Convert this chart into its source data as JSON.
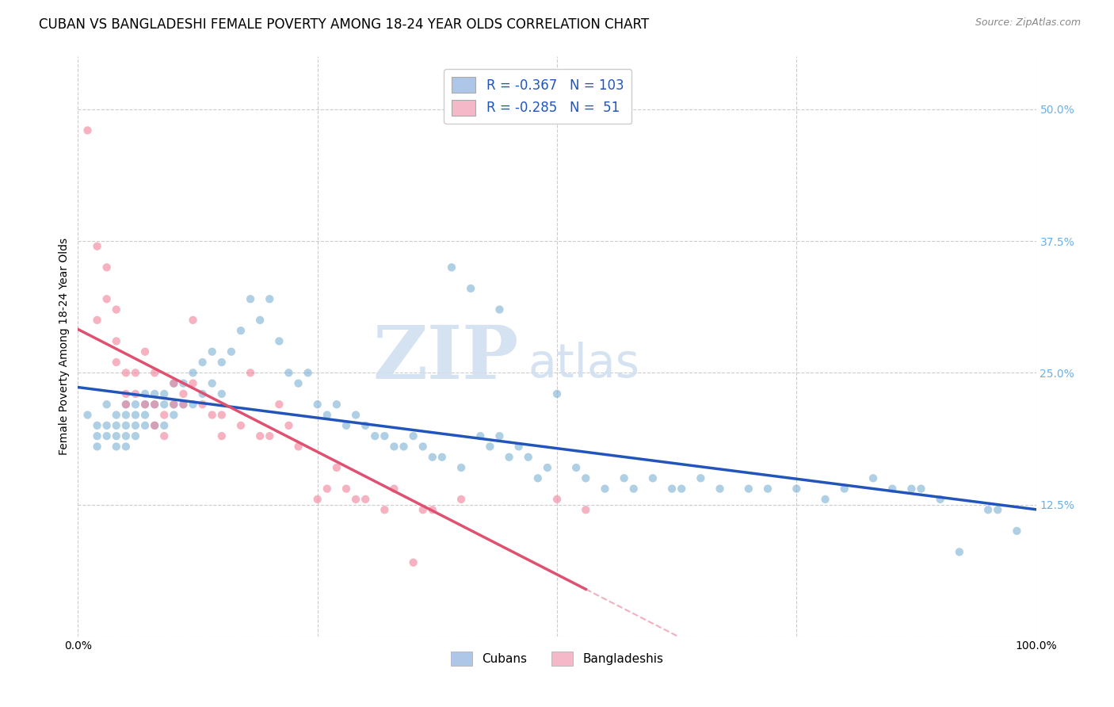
{
  "title": "CUBAN VS BANGLADESHI FEMALE POVERTY AMONG 18-24 YEAR OLDS CORRELATION CHART",
  "source": "Source: ZipAtlas.com",
  "ylabel": "Female Poverty Among 18-24 Year Olds",
  "xlim": [
    0.0,
    1.0
  ],
  "ylim": [
    0.0,
    0.55
  ],
  "yticks": [
    0.0,
    0.125,
    0.25,
    0.375,
    0.5
  ],
  "xticks": [
    0.0,
    0.25,
    0.5,
    0.75,
    1.0
  ],
  "legend_entries": [
    {
      "label": "Cubans",
      "color": "#aec6e8",
      "r": "-0.367",
      "n": "103"
    },
    {
      "label": "Bangladeshis",
      "color": "#f4b8c8",
      "r": "-0.285",
      "n": " 51"
    }
  ],
  "cubans_x": [
    0.01,
    0.02,
    0.02,
    0.02,
    0.03,
    0.03,
    0.03,
    0.04,
    0.04,
    0.04,
    0.04,
    0.05,
    0.05,
    0.05,
    0.05,
    0.05,
    0.06,
    0.06,
    0.06,
    0.06,
    0.07,
    0.07,
    0.07,
    0.07,
    0.08,
    0.08,
    0.08,
    0.09,
    0.09,
    0.09,
    0.1,
    0.1,
    0.1,
    0.11,
    0.11,
    0.12,
    0.12,
    0.13,
    0.13,
    0.14,
    0.14,
    0.15,
    0.15,
    0.16,
    0.17,
    0.18,
    0.19,
    0.2,
    0.21,
    0.22,
    0.23,
    0.24,
    0.25,
    0.26,
    0.27,
    0.28,
    0.29,
    0.3,
    0.31,
    0.32,
    0.33,
    0.34,
    0.35,
    0.36,
    0.37,
    0.38,
    0.4,
    0.42,
    0.43,
    0.44,
    0.45,
    0.46,
    0.47,
    0.48,
    0.49,
    0.5,
    0.52,
    0.53,
    0.55,
    0.57,
    0.58,
    0.6,
    0.62,
    0.63,
    0.65,
    0.67,
    0.7,
    0.72,
    0.75,
    0.78,
    0.8,
    0.83,
    0.85,
    0.87,
    0.88,
    0.9,
    0.92,
    0.95,
    0.96,
    0.98,
    0.39,
    0.41,
    0.44
  ],
  "cubans_y": [
    0.21,
    0.2,
    0.19,
    0.18,
    0.22,
    0.2,
    0.19,
    0.21,
    0.2,
    0.19,
    0.18,
    0.22,
    0.21,
    0.2,
    0.19,
    0.18,
    0.22,
    0.21,
    0.2,
    0.19,
    0.23,
    0.22,
    0.21,
    0.2,
    0.23,
    0.22,
    0.2,
    0.23,
    0.22,
    0.2,
    0.24,
    0.22,
    0.21,
    0.24,
    0.22,
    0.25,
    0.22,
    0.26,
    0.23,
    0.27,
    0.24,
    0.26,
    0.23,
    0.27,
    0.29,
    0.32,
    0.3,
    0.32,
    0.28,
    0.25,
    0.24,
    0.25,
    0.22,
    0.21,
    0.22,
    0.2,
    0.21,
    0.2,
    0.19,
    0.19,
    0.18,
    0.18,
    0.19,
    0.18,
    0.17,
    0.17,
    0.16,
    0.19,
    0.18,
    0.19,
    0.17,
    0.18,
    0.17,
    0.15,
    0.16,
    0.23,
    0.16,
    0.15,
    0.14,
    0.15,
    0.14,
    0.15,
    0.14,
    0.14,
    0.15,
    0.14,
    0.14,
    0.14,
    0.14,
    0.13,
    0.14,
    0.15,
    0.14,
    0.14,
    0.14,
    0.13,
    0.08,
    0.12,
    0.12,
    0.1,
    0.35,
    0.33,
    0.31
  ],
  "bangladeshis_x": [
    0.01,
    0.02,
    0.02,
    0.03,
    0.03,
    0.04,
    0.04,
    0.04,
    0.05,
    0.05,
    0.05,
    0.06,
    0.06,
    0.07,
    0.07,
    0.08,
    0.08,
    0.08,
    0.09,
    0.09,
    0.1,
    0.1,
    0.11,
    0.11,
    0.12,
    0.12,
    0.13,
    0.14,
    0.15,
    0.15,
    0.17,
    0.18,
    0.19,
    0.2,
    0.21,
    0.22,
    0.23,
    0.25,
    0.26,
    0.27,
    0.28,
    0.29,
    0.3,
    0.32,
    0.33,
    0.35,
    0.36,
    0.37,
    0.4,
    0.5,
    0.53
  ],
  "bangladeshis_y": [
    0.48,
    0.37,
    0.3,
    0.35,
    0.32,
    0.28,
    0.31,
    0.26,
    0.23,
    0.25,
    0.22,
    0.23,
    0.25,
    0.27,
    0.22,
    0.22,
    0.25,
    0.2,
    0.21,
    0.19,
    0.22,
    0.24,
    0.23,
    0.22,
    0.3,
    0.24,
    0.22,
    0.21,
    0.21,
    0.19,
    0.2,
    0.25,
    0.19,
    0.19,
    0.22,
    0.2,
    0.18,
    0.13,
    0.14,
    0.16,
    0.14,
    0.13,
    0.13,
    0.12,
    0.14,
    0.07,
    0.12,
    0.12,
    0.13,
    0.13,
    0.12
  ],
  "watermark_zip": "ZIP",
  "watermark_atlas": "atlas",
  "background_color": "#ffffff",
  "scatter_alpha": 0.6,
  "scatter_size": 55,
  "cuban_color": "#7bafd4",
  "bangladeshi_color": "#f08099",
  "cuban_line_color": "#2255bb",
  "bangladeshi_line_color": "#e05070",
  "grid_color": "#cccccc",
  "right_tick_color": "#6ab0e8",
  "title_fontsize": 12,
  "label_fontsize": 10,
  "tick_fontsize": 10,
  "legend_text_color": "#2255bb"
}
